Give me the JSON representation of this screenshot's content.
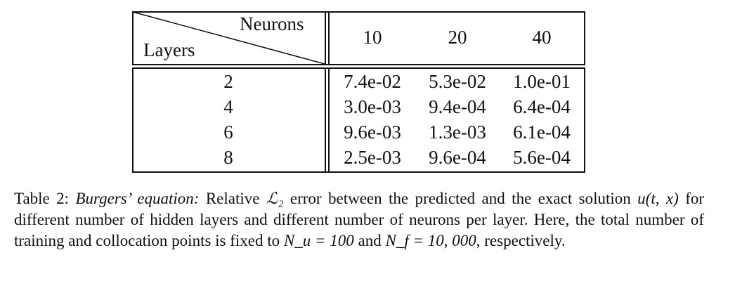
{
  "table": {
    "header": {
      "neurons_label": "Neurons",
      "layers_label": "Layers",
      "columns": [
        "10",
        "20",
        "40"
      ]
    },
    "rows": [
      {
        "layers": "2",
        "values": [
          "7.4e-02",
          "5.3e-02",
          "1.0e-01"
        ]
      },
      {
        "layers": "4",
        "values": [
          "3.0e-03",
          "9.4e-04",
          "6.4e-04"
        ]
      },
      {
        "layers": "6",
        "values": [
          "9.6e-03",
          "1.3e-03",
          "6.1e-04"
        ]
      },
      {
        "layers": "8",
        "values": [
          "2.5e-03",
          "9.6e-04",
          "5.6e-04"
        ]
      }
    ]
  },
  "caption": {
    "label": "Table 2:",
    "emphasis": "Burgers’ equation:",
    "text_1": "Relative",
    "metric": "ℒ₂",
    "text_2": "error between the predicted and the exact solution",
    "function": "u(t, x)",
    "text_3": "for different number of hidden layers and different number of neurons per layer. Here, the total number of training and collocation points is fixed to",
    "nu_expr": "N_u = 100",
    "text_4": "and",
    "nf_expr": "N_f = 10, 000",
    "text_5": ", respectively."
  }
}
